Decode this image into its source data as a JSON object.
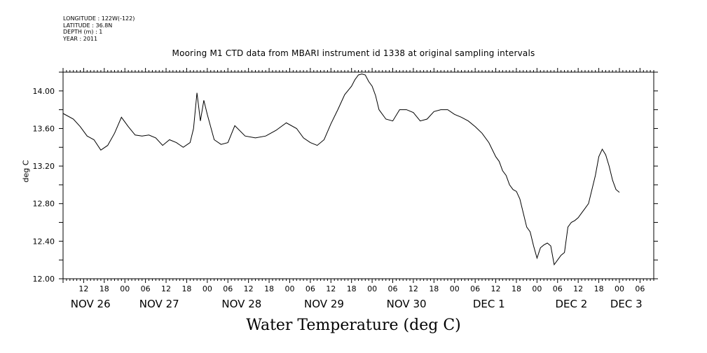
{
  "meta": {
    "longitude": "LONGITUDE : 122W(-122)",
    "latitude": "LATITUDE : 36.8N",
    "depth": "DEPTH (m) : 1",
    "year": "YEAR : 2011"
  },
  "chart_data": {
    "type": "line",
    "title": "Mooring M1 CTD data from MBARI instrument id 1338 at original sampling intervals",
    "xlabel": "Water Temperature (deg C)",
    "ylabel": "deg C",
    "ylim": [
      12.0,
      14.2
    ],
    "xlim_hours": [
      0,
      162
    ],
    "y_ticks": [
      "12.00",
      "12.40",
      "12.80",
      "13.20",
      "13.60",
      "14.00"
    ],
    "hour_tick_labels": [
      {
        "h": 6,
        "label": "12"
      },
      {
        "h": 12,
        "label": "18"
      },
      {
        "h": 18,
        "label": "00"
      },
      {
        "h": 24,
        "label": "06"
      },
      {
        "h": 30,
        "label": "12"
      },
      {
        "h": 36,
        "label": "18"
      },
      {
        "h": 42,
        "label": "00"
      },
      {
        "h": 48,
        "label": "06"
      },
      {
        "h": 54,
        "label": "12"
      },
      {
        "h": 60,
        "label": "18"
      },
      {
        "h": 66,
        "label": "00"
      },
      {
        "h": 72,
        "label": "06"
      },
      {
        "h": 78,
        "label": "12"
      },
      {
        "h": 84,
        "label": "18"
      },
      {
        "h": 90,
        "label": "00"
      },
      {
        "h": 96,
        "label": "06"
      },
      {
        "h": 102,
        "label": "12"
      },
      {
        "h": 108,
        "label": "18"
      },
      {
        "h": 114,
        "label": "00"
      },
      {
        "h": 120,
        "label": "06"
      },
      {
        "h": 126,
        "label": "12"
      },
      {
        "h": 132,
        "label": "18"
      },
      {
        "h": 138,
        "label": "00"
      },
      {
        "h": 144,
        "label": "06"
      },
      {
        "h": 150,
        "label": "12"
      },
      {
        "h": 156,
        "label": "18"
      },
      {
        "h": 162,
        "label": "00"
      },
      {
        "h": 168,
        "label": "06"
      }
    ],
    "date_labels": [
      {
        "h": 8,
        "label": "NOV 26"
      },
      {
        "h": 28,
        "label": "NOV 27"
      },
      {
        "h": 52,
        "label": "NOV 28"
      },
      {
        "h": 76,
        "label": "NOV 29"
      },
      {
        "h": 100,
        "label": "NOV 30"
      },
      {
        "h": 124,
        "label": "DEC  1"
      },
      {
        "h": 148,
        "label": "DEC  2"
      },
      {
        "h": 164,
        "label": "DEC  3"
      }
    ],
    "series": [
      {
        "x": [
          0,
          3,
          5,
          7,
          9,
          11,
          13,
          15,
          17,
          19,
          21,
          23,
          25,
          27,
          29,
          31,
          33,
          35,
          37,
          38,
          39,
          40,
          41,
          42,
          44,
          46,
          48,
          50,
          53,
          56,
          59,
          62,
          65,
          68,
          70,
          72,
          74,
          76,
          78,
          80,
          82,
          84,
          85,
          86,
          87,
          88,
          89,
          90,
          91,
          92,
          94,
          96,
          98,
          100,
          102,
          104,
          106,
          108,
          110,
          112,
          114,
          116,
          118,
          120,
          122,
          124,
          126,
          127,
          128,
          129,
          130,
          131,
          132,
          133,
          134,
          135,
          136,
          137,
          138,
          139,
          140,
          141,
          142,
          143,
          144,
          145,
          146,
          147,
          148,
          149,
          150,
          151,
          152,
          153,
          154,
          155,
          156,
          157,
          158,
          159,
          160,
          161,
          162
        ],
        "y": [
          13.76,
          13.7,
          13.62,
          13.52,
          13.48,
          13.37,
          13.42,
          13.55,
          13.72,
          13.62,
          13.53,
          13.52,
          13.53,
          13.5,
          13.42,
          13.48,
          13.45,
          13.4,
          13.45,
          13.6,
          13.98,
          13.68,
          13.9,
          13.75,
          13.48,
          13.43,
          13.45,
          13.63,
          13.52,
          13.5,
          13.52,
          13.58,
          13.66,
          13.6,
          13.5,
          13.45,
          13.42,
          13.48,
          13.65,
          13.8,
          13.96,
          14.05,
          14.12,
          14.17,
          14.18,
          14.17,
          14.1,
          14.05,
          13.95,
          13.8,
          13.7,
          13.68,
          13.8,
          13.8,
          13.77,
          13.68,
          13.7,
          13.78,
          13.8,
          13.8,
          13.75,
          13.72,
          13.68,
          13.62,
          13.55,
          13.45,
          13.3,
          13.25,
          13.15,
          13.1,
          13.0,
          12.95,
          12.93,
          12.85,
          12.7,
          12.55,
          12.5,
          12.35,
          12.22,
          12.33,
          12.36,
          12.38,
          12.35,
          12.15,
          12.2,
          12.25,
          12.28,
          12.55,
          12.6,
          12.62,
          12.65,
          12.7,
          12.75,
          12.8,
          12.95,
          13.1,
          13.3,
          13.38,
          13.32,
          13.2,
          13.05,
          12.95,
          12.92
        ]
      }
    ],
    "grid": false
  }
}
